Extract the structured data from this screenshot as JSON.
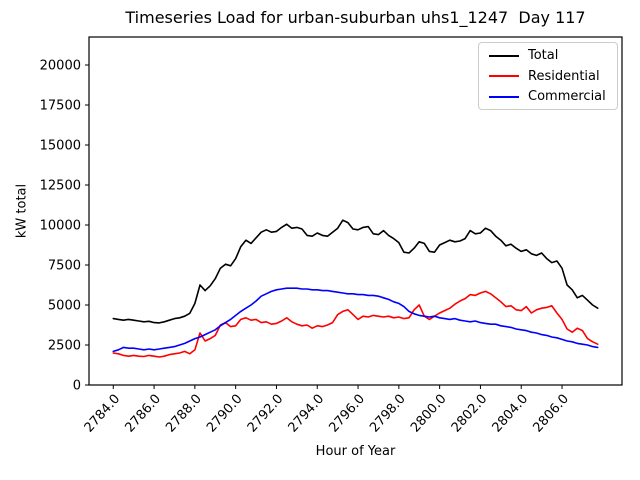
{
  "chart_data": {
    "type": "line",
    "title": "Timeseries Load for urban-suburban uhs1_1247  Day 117",
    "xlabel": "Hour of Year",
    "ylabel": "kW total",
    "xlim": [
      2782.81,
      2808.94
    ],
    "ylim": [
      0,
      21750
    ],
    "grid": false,
    "legend_position": "upper right",
    "yticks": [
      0,
      2500,
      5000,
      7500,
      10000,
      12500,
      15000,
      17500,
      20000
    ],
    "xticks": [
      2784,
      2786,
      2788,
      2790,
      2792,
      2794,
      2796,
      2798,
      2800,
      2802,
      2804,
      2806
    ],
    "xtick_labels": [
      "2784.0",
      "2786.0",
      "2788.0",
      "2790.0",
      "2792.0",
      "2794.0",
      "2796.0",
      "2798.0",
      "2800.0",
      "2802.0",
      "2804.0",
      "2806.0"
    ],
    "x_start": 2784.0,
    "x_step": 0.25,
    "series": [
      {
        "name": "Total",
        "color": "#000000",
        "values": [
          4150,
          4100,
          4050,
          4100,
          4050,
          4000,
          3950,
          3980,
          3900,
          3880,
          3950,
          4050,
          4150,
          4200,
          4300,
          4480,
          5100,
          6250,
          5900,
          6200,
          6650,
          7300,
          7550,
          7450,
          7900,
          8650,
          9050,
          8850,
          9200,
          9550,
          9700,
          9550,
          9600,
          9850,
          10050,
          9800,
          9850,
          9750,
          9350,
          9300,
          9500,
          9350,
          9300,
          9550,
          9800,
          10300,
          10150,
          9750,
          9700,
          9850,
          9900,
          9450,
          9400,
          9650,
          9350,
          9150,
          8900,
          8300,
          8250,
          8550,
          8950,
          8850,
          8350,
          8300,
          8750,
          8900,
          9050,
          8950,
          9000,
          9150,
          9650,
          9450,
          9500,
          9800,
          9650,
          9300,
          9050,
          8700,
          8800,
          8550,
          8350,
          8450,
          8200,
          8100,
          8250,
          7900,
          7650,
          7750,
          7300,
          6250,
          5950,
          5450,
          5600,
          5300,
          5000,
          4800
        ]
      },
      {
        "name": "Residential",
        "color": "#ff0000",
        "values": [
          2000,
          1950,
          1850,
          1800,
          1850,
          1800,
          1780,
          1850,
          1800,
          1750,
          1800,
          1900,
          1950,
          2000,
          2100,
          1950,
          2200,
          3250,
          2750,
          2900,
          3100,
          3750,
          3900,
          3650,
          3700,
          4100,
          4200,
          4050,
          4100,
          3900,
          3950,
          3800,
          3850,
          4000,
          4200,
          3950,
          3800,
          3700,
          3750,
          3550,
          3700,
          3650,
          3750,
          3900,
          4400,
          4600,
          4700,
          4400,
          4100,
          4300,
          4250,
          4350,
          4300,
          4250,
          4300,
          4200,
          4250,
          4150,
          4200,
          4700,
          5000,
          4300,
          4100,
          4300,
          4500,
          4650,
          4800,
          5050,
          5250,
          5400,
          5650,
          5600,
          5750,
          5850,
          5700,
          5450,
          5200,
          4900,
          4950,
          4700,
          4650,
          4900,
          4500,
          4700,
          4800,
          4850,
          4950,
          4500,
          4100,
          3500,
          3300,
          3550,
          3400,
          2900,
          2700,
          2550
        ]
      },
      {
        "name": "Commercial",
        "color": "#0000ff",
        "values": [
          2100,
          2200,
          2350,
          2300,
          2300,
          2250,
          2200,
          2250,
          2200,
          2250,
          2300,
          2350,
          2400,
          2500,
          2600,
          2750,
          2900,
          3000,
          3150,
          3300,
          3450,
          3700,
          3900,
          4100,
          4350,
          4600,
          4800,
          5000,
          5250,
          5550,
          5700,
          5850,
          5950,
          6000,
          6050,
          6050,
          6050,
          6000,
          6000,
          5950,
          5950,
          5900,
          5900,
          5850,
          5800,
          5750,
          5700,
          5700,
          5650,
          5650,
          5600,
          5600,
          5550,
          5450,
          5350,
          5200,
          5100,
          4900,
          4600,
          4450,
          4350,
          4300,
          4250,
          4300,
          4200,
          4150,
          4100,
          4150,
          4050,
          4000,
          3950,
          4000,
          3900,
          3850,
          3800,
          3800,
          3700,
          3650,
          3600,
          3500,
          3450,
          3400,
          3300,
          3250,
          3150,
          3100,
          3000,
          2950,
          2850,
          2750,
          2700,
          2600,
          2550,
          2500,
          2400,
          2350
        ]
      }
    ]
  }
}
